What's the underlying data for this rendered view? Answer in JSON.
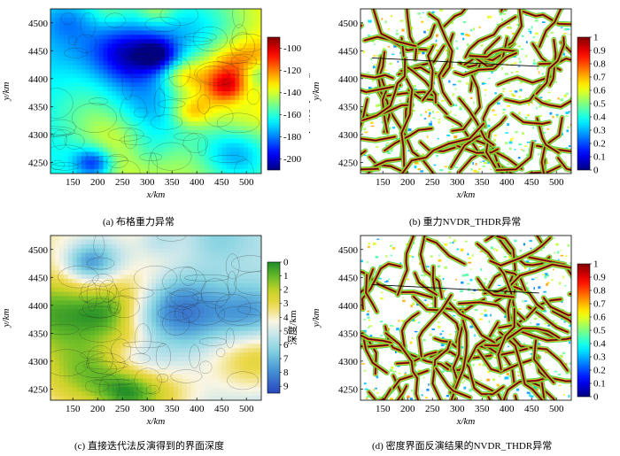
{
  "colors": {
    "jet_low": "#1a3fd6",
    "jet_mid": "#3ccf3c",
    "jet_high": "#d81818",
    "depth_low": "#1f8a2a",
    "depth_high": "#3a63c8",
    "contour": "#1a1a1a"
  },
  "chart_data": [
    {
      "id": "a",
      "type": "heatmap",
      "palette": "jet",
      "caption": "(a) 布格重力异常",
      "xlabel": "x/km",
      "ylabel": "y/km",
      "xticks": [
        "150",
        "200",
        "250",
        "300",
        "350",
        "400",
        "450",
        "500"
      ],
      "yticks": [
        "4500",
        "4450",
        "4400",
        "4350",
        "4300",
        "4250"
      ],
      "xlim": [
        105,
        530
      ],
      "ylim": [
        4230,
        4525
      ],
      "colorbar": {
        "ticks": [
          "-100",
          "-120",
          "-140",
          "-160",
          "-180",
          "-200"
        ],
        "range": [
          -210,
          -90
        ],
        "label": "Δg/(10⁻⁵ m·s⁻²)",
        "reversed": false
      }
    },
    {
      "id": "b",
      "type": "heatmap",
      "palette": "jet-white",
      "caption": "(b) 重力NVDR_THDR异常",
      "xlabel": "x/km",
      "ylabel": "y/km",
      "xticks": [
        "150",
        "200",
        "250",
        "300",
        "350",
        "400",
        "450",
        "500"
      ],
      "yticks": [
        "4500",
        "4450",
        "4400",
        "4350",
        "4300",
        "4250"
      ],
      "xlim": [
        105,
        530
      ],
      "ylim": [
        4230,
        4525
      ],
      "colorbar": {
        "ticks": [
          "1",
          "0.9",
          "0.8",
          "0.7",
          "0.6",
          "0.5",
          "0.4",
          "0.3",
          "0.2",
          "0.1",
          "0"
        ],
        "range": [
          0,
          1
        ],
        "label": "",
        "reversed": false
      }
    },
    {
      "id": "c",
      "type": "heatmap",
      "palette": "depth",
      "caption": "(c) 直接迭代法反演得到的界面深度",
      "xlabel": "x/km",
      "ylabel": "y/km",
      "xticks": [
        "150",
        "200",
        "250",
        "300",
        "350",
        "400",
        "450",
        "500"
      ],
      "yticks": [
        "4500",
        "4450",
        "4400",
        "4350",
        "4300",
        "4250"
      ],
      "xlim": [
        105,
        530
      ],
      "ylim": [
        4230,
        4525
      ],
      "colorbar": {
        "ticks": [
          "0",
          "1",
          "2",
          "3",
          "4",
          "5",
          "6",
          "7",
          "8",
          "9"
        ],
        "range": [
          0,
          9.5
        ],
        "label": "深度/km",
        "reversed": true
      }
    },
    {
      "id": "d",
      "type": "heatmap",
      "palette": "jet-white",
      "caption": "(d) 密度界面反演结果的NVDR_THDR异常",
      "xlabel": "x/km",
      "ylabel": "y/km",
      "xticks": [
        "150",
        "200",
        "250",
        "300",
        "350",
        "400",
        "450",
        "500"
      ],
      "yticks": [
        "4500",
        "4450",
        "4400",
        "4350",
        "4300",
        "4250"
      ],
      "xlim": [
        105,
        530
      ],
      "ylim": [
        4230,
        4525
      ],
      "colorbar": {
        "ticks": [
          "1",
          "0.9",
          "0.8",
          "0.7",
          "0.6",
          "0.5",
          "0.4",
          "0.3",
          "0.2",
          "0.1",
          "0"
        ],
        "range": [
          0,
          1
        ],
        "label": "",
        "reversed": false
      }
    }
  ]
}
